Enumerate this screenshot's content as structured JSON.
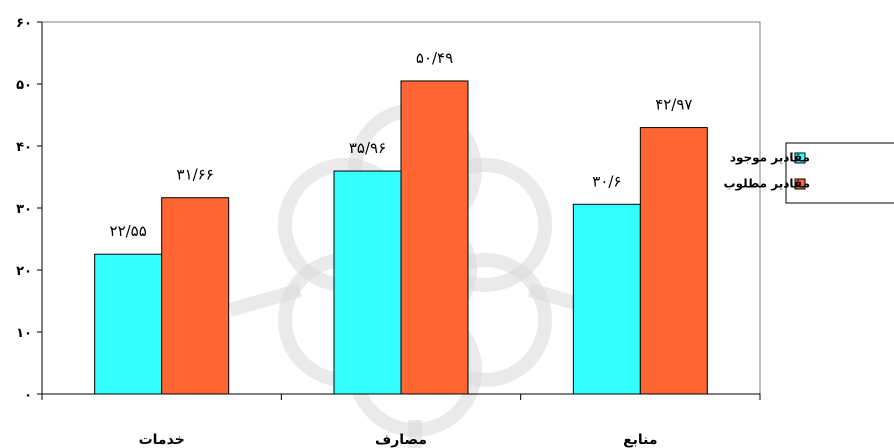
{
  "chart_data": {
    "type": "bar",
    "categories": [
      "خدمات",
      "مصارف",
      "منابع"
    ],
    "series": [
      {
        "name": "مقادیر موجود",
        "values": [
          22.55,
          35.96,
          30.6
        ],
        "labels": [
          "۲۲/۵۵",
          "۳۵/۹۶",
          "۳۰/۶"
        ]
      },
      {
        "name": "مقادیر مطلوب",
        "values": [
          31.66,
          50.49,
          42.97
        ],
        "labels": [
          "۳۱/۶۶",
          "۵۰/۴۹",
          "۴۲/۹۷"
        ]
      }
    ],
    "ylim": [
      0,
      60
    ],
    "yticks": [
      0,
      10,
      20,
      30,
      40,
      50,
      60
    ],
    "ytick_labels": [
      "۰",
      "۱۰",
      "۲۰",
      "۳۰",
      "۴۰",
      "۵۰",
      "۶۰"
    ],
    "grid": false,
    "legend_position": "right",
    "colors": [
      "#33ffff",
      "#ff6633"
    ]
  }
}
